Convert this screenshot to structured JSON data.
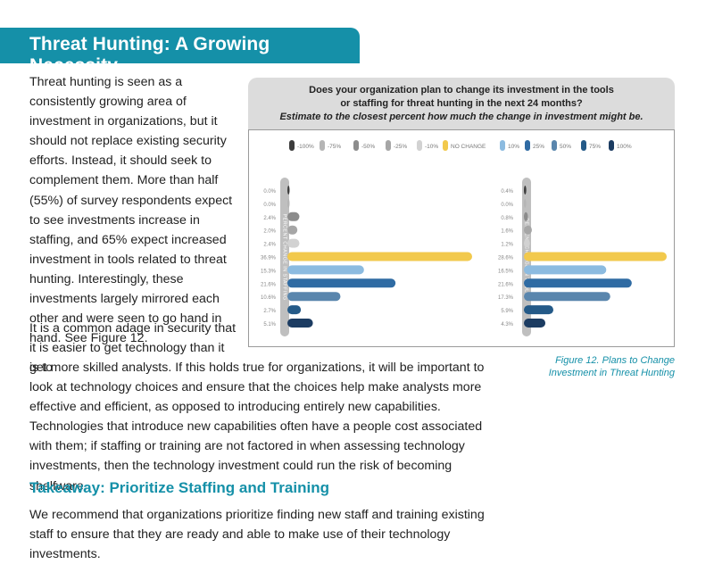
{
  "title": "Threat Hunting: A Growing Necessity",
  "paragraphs": {
    "p1": "Threat hunting is seen as a consistently growing area of investment in organizations, but it should not replace existing security efforts. Instead, it should seek to complement them. More than half (55%) of survey respondents expect to see investments increase in staffing, and 65% expect increased investment in tools related to threat hunting. Interestingly, these investments largely mirrored each other and were seen to go hand in hand. See Figure 12.",
    "p2a": "It is a common adage in security that it is easier to get technology than it is to",
    "p2b": "get more skilled analysts. If this holds true for organizations, it will be important to look at technology choices and ensure that the choices help make analysts more effective and efficient, as opposed to introducing entirely new capabilities. Technologies that introduce new capabilities often have a people cost associated with them; if staffing or training are not factored in when assessing technology investments, then the technology investment could run the risk of becoming shelfware."
  },
  "takeaway": {
    "heading": "Takeaway: Prioritize Staffing and Training",
    "text": "We recommend that organizations prioritize finding new staff and training existing staff to ensure that they are ready and able to make use of their technology investments."
  },
  "figure": {
    "question_line1": "Does your organization plan to change its investment in the tools",
    "question_line2": "or staffing for threat hunting in the next 24 months?",
    "question_line3": "Estimate to the closest percent how much the change in investment might be.",
    "caption": "Figure 12. Plans to Change Investment in Threat Hunting"
  },
  "chart_data": {
    "type": "bar",
    "orientation": "horizontal",
    "categories": [
      "-100%",
      "-75%",
      "-50%",
      "-25%",
      "-10%",
      "NO CHANGE",
      "10%",
      "25%",
      "50%",
      "75%",
      "100%"
    ],
    "colors": [
      "#3c3c3c",
      "#b5b5b5",
      "#8c8c8c",
      "#a6a6a6",
      "#d2d2d2",
      "#f2c94c",
      "#8cbbe0",
      "#2f6ba3",
      "#5a86ad",
      "#245a88",
      "#1c3c62"
    ],
    "legend_position": "top",
    "series": [
      {
        "name": "PERCENT CHANGE IN STAFFING",
        "values": [
          0.0,
          0.0,
          2.4,
          2.0,
          2.4,
          36.9,
          15.3,
          21.6,
          10.6,
          2.7,
          5.1
        ],
        "labels": [
          "0.0%",
          "0.0%",
          "2.4%",
          "2.0%",
          "2.4%",
          "36.9%",
          "15.3%",
          "21.6%",
          "10.6%",
          "2.7%",
          "5.1%"
        ]
      },
      {
        "name": "PERCENT CHANGE IN TOOLS",
        "values": [
          0.4,
          0.0,
          0.8,
          1.6,
          1.2,
          28.6,
          16.5,
          21.6,
          17.3,
          5.9,
          4.3
        ],
        "labels": [
          "0.4%",
          "0.0%",
          "0.8%",
          "1.6%",
          "1.2%",
          "28.6%",
          "16.5%",
          "21.6%",
          "17.3%",
          "5.9%",
          "4.3%"
        ]
      }
    ]
  }
}
